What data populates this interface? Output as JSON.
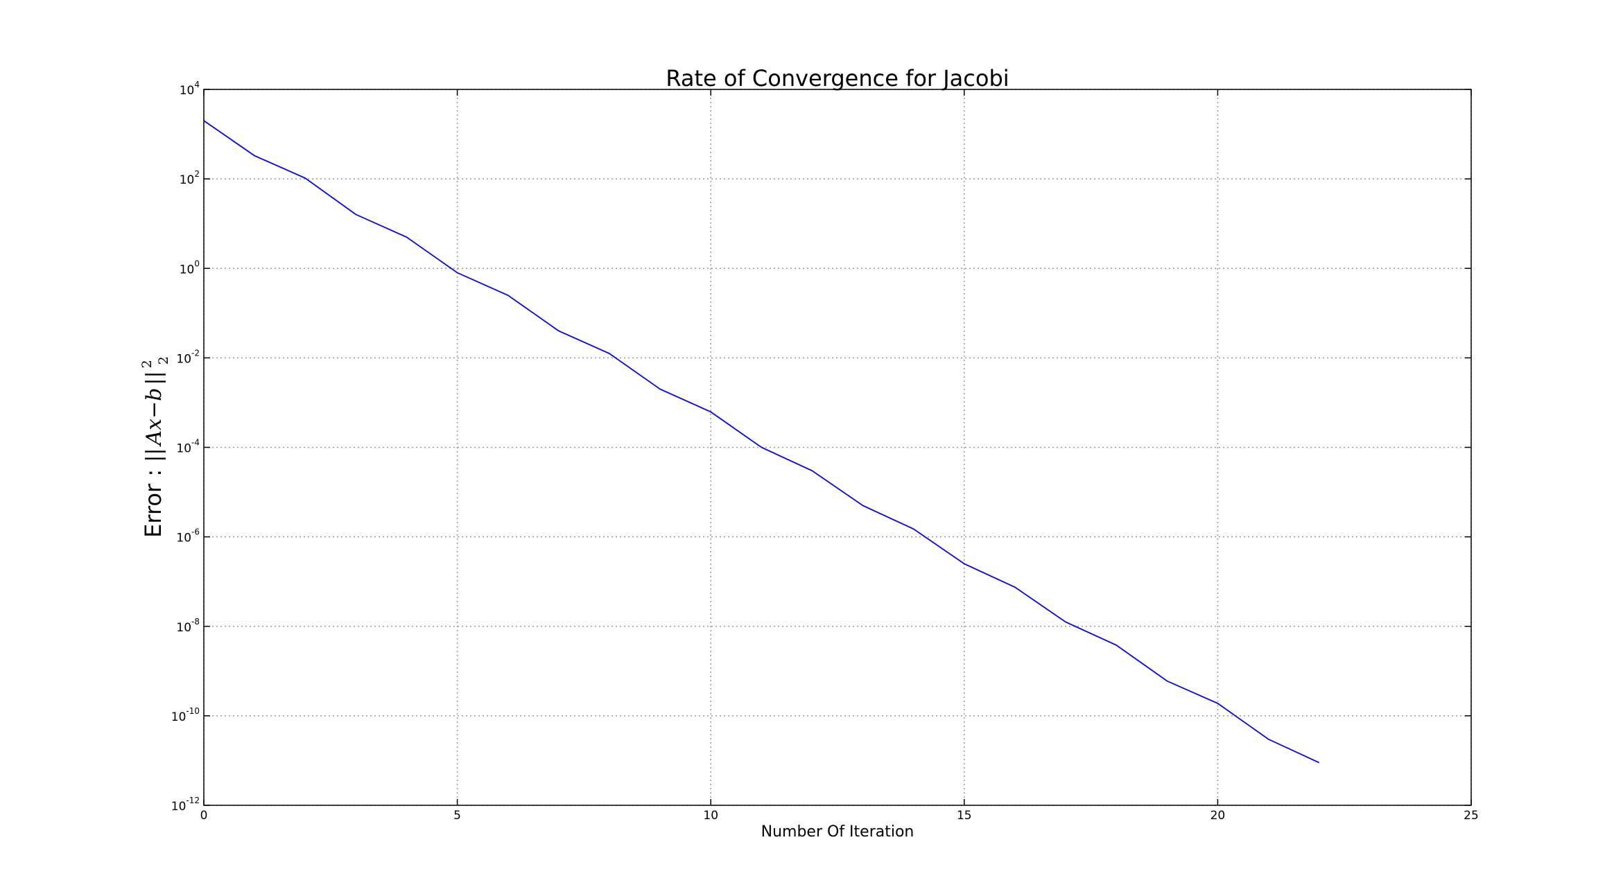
{
  "chart_data": {
    "type": "line",
    "title": "Rate of Convergence for Jacobi",
    "xlabel": "Number Of Iteration",
    "ylabel": {
      "prefix": "Error : ",
      "norm_open": "||",
      "expression": "Ax−b",
      "norm_close": "||",
      "superscript": "2",
      "subscript": "2"
    },
    "xlim": [
      0,
      25
    ],
    "ylim": [
      1e-12,
      10000
    ],
    "yscale": "log",
    "grid": true,
    "x_ticks": [
      "0",
      "5",
      "10",
      "15",
      "20",
      "25"
    ],
    "y_ticks": [
      {
        "value": 1e-12,
        "base": "10",
        "exponent": "-12"
      },
      {
        "value": 1e-10,
        "base": "10",
        "exponent": "-10"
      },
      {
        "value": 1e-08,
        "base": "10",
        "exponent": "-8"
      },
      {
        "value": 1e-06,
        "base": "10",
        "exponent": "-6"
      },
      {
        "value": 0.0001,
        "base": "10",
        "exponent": "-4"
      },
      {
        "value": 0.01,
        "base": "10",
        "exponent": "-2"
      },
      {
        "value": 1,
        "base": "10",
        "exponent": "0"
      },
      {
        "value": 100,
        "base": "10",
        "exponent": "2"
      },
      {
        "value": 10000,
        "base": "10",
        "exponent": "4"
      }
    ],
    "series": [
      {
        "color": "#0000ff",
        "x": [
          0,
          1,
          2,
          3,
          4,
          5,
          6,
          7,
          8,
          9,
          10,
          11,
          12,
          13,
          14,
          15,
          16,
          17,
          18,
          19,
          20,
          21,
          22
        ],
        "y": [
          2000,
          330,
          104,
          16,
          5,
          0.8,
          0.25,
          0.04,
          0.0125,
          0.002,
          0.00062,
          0.0001,
          3e-05,
          5e-06,
          1.5e-06,
          2.5e-07,
          7.5e-08,
          1.25e-08,
          3.8e-09,
          6e-10,
          1.9e-10,
          3e-11,
          9e-12
        ]
      }
    ]
  }
}
